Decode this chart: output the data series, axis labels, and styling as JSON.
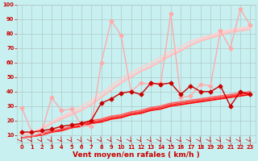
{
  "xlabel": "Vent moyen/en rafales ( km/h )",
  "background_color": "#c8f0f0",
  "grid_color": "#b0c8c8",
  "xlim": [
    -0.5,
    23.5
  ],
  "ylim": [
    5,
    100
  ],
  "yticks": [
    10,
    20,
    30,
    40,
    50,
    60,
    70,
    80,
    90,
    100
  ],
  "xticks": [
    0,
    1,
    2,
    3,
    4,
    5,
    6,
    7,
    8,
    9,
    10,
    11,
    12,
    13,
    14,
    15,
    16,
    17,
    18,
    19,
    20,
    21,
    22,
    23
  ],
  "series": [
    {
      "x": [
        0,
        1,
        2,
        3,
        4,
        5,
        6,
        7,
        8,
        9,
        10,
        11,
        12,
        13,
        14,
        15,
        16,
        17,
        18,
        19,
        20,
        21,
        22,
        23
      ],
      "y": [
        29,
        12,
        12,
        36,
        27,
        28,
        17,
        16,
        60,
        89,
        79,
        40,
        46,
        45,
        46,
        94,
        36,
        37,
        45,
        44,
        82,
        70,
        97,
        86
      ],
      "color": "#ffaaaa",
      "lw": 1.0,
      "marker": "D",
      "ms": 2.5
    },
    {
      "x": [
        0,
        1,
        2,
        3,
        4,
        5,
        6,
        7,
        8,
        9,
        10,
        11,
        12,
        13,
        14,
        15,
        16,
        17,
        18,
        19,
        20,
        21,
        22,
        23
      ],
      "y": [
        10,
        11,
        14,
        18,
        21,
        24,
        27,
        31,
        36,
        41,
        46,
        50,
        54,
        57,
        61,
        65,
        68,
        72,
        75,
        77,
        79,
        81,
        82,
        83
      ],
      "color": "#ffbbbb",
      "lw": 1.2,
      "marker": null,
      "ms": 0
    },
    {
      "x": [
        0,
        1,
        2,
        3,
        4,
        5,
        6,
        7,
        8,
        9,
        10,
        11,
        12,
        13,
        14,
        15,
        16,
        17,
        18,
        19,
        20,
        21,
        22,
        23
      ],
      "y": [
        10,
        12,
        15,
        19,
        22,
        25,
        28,
        32,
        37,
        42,
        47,
        51,
        55,
        58,
        62,
        66,
        69,
        73,
        76,
        78,
        80,
        82,
        83,
        84
      ],
      "color": "#ffcccc",
      "lw": 1.2,
      "marker": null,
      "ms": 0
    },
    {
      "x": [
        0,
        1,
        2,
        3,
        4,
        5,
        6,
        7,
        8,
        9,
        10,
        11,
        12,
        13,
        14,
        15,
        16,
        17,
        18,
        19,
        20,
        21,
        22,
        23
      ],
      "y": [
        10,
        12,
        15,
        19,
        23,
        26,
        30,
        34,
        39,
        44,
        49,
        53,
        57,
        60,
        64,
        68,
        71,
        75,
        77,
        79,
        81,
        83,
        84,
        85
      ],
      "color": "#ffd0d0",
      "lw": 1.2,
      "marker": null,
      "ms": 0
    },
    {
      "x": [
        0,
        1,
        2,
        3,
        4,
        5,
        6,
        7,
        8,
        9,
        10,
        11,
        12,
        13,
        14,
        15,
        16,
        17,
        18,
        19,
        20,
        21,
        22,
        23
      ],
      "y": [
        12,
        12,
        13,
        14,
        16,
        17,
        18,
        20,
        32,
        35,
        39,
        40,
        38,
        46,
        45,
        46,
        38,
        44,
        40,
        40,
        44,
        30,
        40,
        38
      ],
      "color": "#cc0000",
      "lw": 1.0,
      "marker": "D",
      "ms": 2.5
    },
    {
      "x": [
        0,
        1,
        2,
        3,
        4,
        5,
        6,
        7,
        8,
        9,
        10,
        11,
        12,
        13,
        14,
        15,
        16,
        17,
        18,
        19,
        20,
        21,
        22,
        23
      ],
      "y": [
        8,
        9,
        10,
        12,
        13,
        15,
        16,
        18,
        19,
        21,
        22,
        24,
        25,
        27,
        28,
        30,
        31,
        32,
        33,
        34,
        35,
        36,
        37,
        38
      ],
      "color": "#ff0000",
      "lw": 1.2,
      "marker": null,
      "ms": 0
    },
    {
      "x": [
        0,
        1,
        2,
        3,
        4,
        5,
        6,
        7,
        8,
        9,
        10,
        11,
        12,
        13,
        14,
        15,
        16,
        17,
        18,
        19,
        20,
        21,
        22,
        23
      ],
      "y": [
        8,
        9,
        10,
        12,
        14,
        15,
        17,
        19,
        20,
        22,
        23,
        25,
        26,
        28,
        29,
        31,
        32,
        33,
        34,
        35,
        36,
        37,
        38,
        39
      ],
      "color": "#ff3333",
      "lw": 1.2,
      "marker": null,
      "ms": 0
    },
    {
      "x": [
        0,
        1,
        2,
        3,
        4,
        5,
        6,
        7,
        8,
        9,
        10,
        11,
        12,
        13,
        14,
        15,
        16,
        17,
        18,
        19,
        20,
        21,
        22,
        23
      ],
      "y": [
        8,
        9,
        11,
        13,
        14,
        16,
        18,
        20,
        21,
        23,
        24,
        26,
        27,
        29,
        30,
        32,
        33,
        34,
        35,
        36,
        37,
        38,
        39,
        40
      ],
      "color": "#ff6666",
      "lw": 1.2,
      "marker": null,
      "ms": 0
    }
  ],
  "tick_label_fontsize": 4.8,
  "axis_label_fontsize": 6.5,
  "tick_color": "#cc0000",
  "label_color": "#cc0000"
}
